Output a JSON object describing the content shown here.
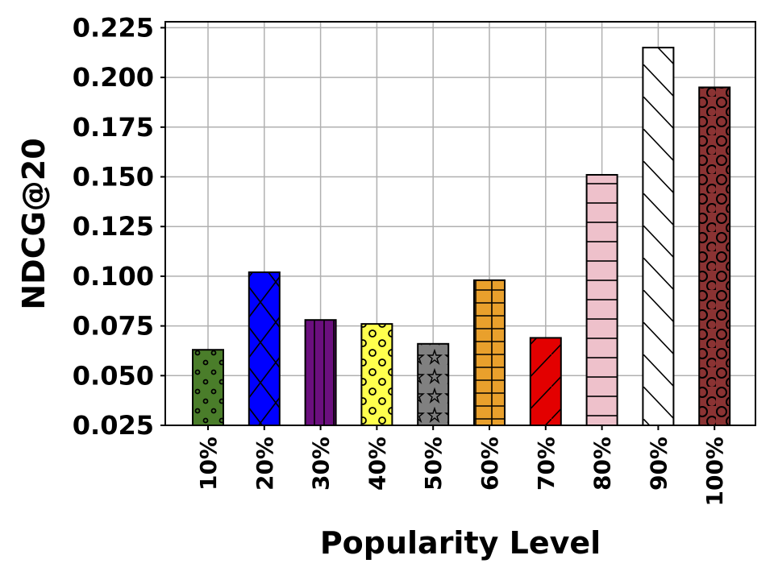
{
  "chart_data": {
    "type": "bar",
    "categories": [
      "10%",
      "20%",
      "30%",
      "40%",
      "50%",
      "60%",
      "70%",
      "80%",
      "90%",
      "100%"
    ],
    "values": [
      0.063,
      0.102,
      0.078,
      0.076,
      0.066,
      0.098,
      0.069,
      0.151,
      0.215,
      0.195
    ],
    "colors": [
      "#4a7d2a",
      "#0000ff",
      "#6b0f7e",
      "#ffff4d",
      "#808080",
      "#e9a02c",
      "#e30000",
      "#eec1cb",
      "#ffffff",
      "#8b3333"
    ],
    "hatches": [
      "dots",
      "cross",
      "vertical",
      "circles",
      "stars",
      "grid",
      "diagonal",
      "horizontal",
      "backslash",
      "rings"
    ],
    "xlabel": "Popularity Level",
    "ylabel": "NDCG@20",
    "ylim": [
      0.025,
      0.228
    ],
    "yticks": [
      "0.025",
      "0.050",
      "0.075",
      "0.100",
      "0.125",
      "0.150",
      "0.175",
      "0.200",
      "0.225"
    ],
    "grid": true
  }
}
